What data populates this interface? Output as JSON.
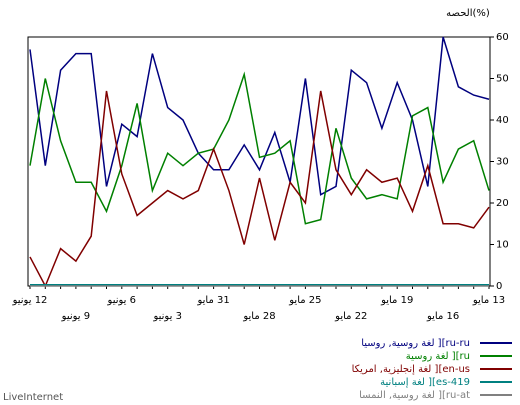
{
  "chart_data": {
    "type": "line",
    "title": "الحصه(%)",
    "categories": [
      "12 يونيو",
      null,
      null,
      "9 يونيو",
      null,
      null,
      "6 يونيو",
      null,
      null,
      "3 يونيو",
      null,
      null,
      "31 مايو",
      null,
      null,
      "28 مايو",
      null,
      null,
      "25 مايو",
      null,
      null,
      "22 مايو",
      null,
      null,
      "19 مايو",
      null,
      null,
      "16 مايو",
      null,
      null,
      "13 مايو"
    ],
    "series": [
      {
        "name": "لغة روسية, روسيا ][ru-ru",
        "color": "#00007f",
        "values": [
          57,
          29,
          52,
          56,
          56,
          24,
          39,
          36,
          56,
          43,
          40,
          32,
          28,
          28,
          34,
          28,
          37,
          25,
          50,
          22,
          24,
          52,
          49,
          38,
          49,
          40,
          24,
          60,
          48,
          46,
          45
        ]
      },
      {
        "name": "لغة روسية ][ru",
        "color": "#008000",
        "values": [
          29,
          50,
          35,
          25,
          25,
          18,
          29,
          44,
          23,
          32,
          29,
          32,
          33,
          40,
          51,
          31,
          32,
          35,
          15,
          16,
          38,
          26,
          21,
          22,
          21,
          41,
          43,
          25,
          33,
          35,
          23
        ]
      },
      {
        "name": "لغة إنجليزية, امريكا ][en-us",
        "color": "#800000",
        "values": [
          7,
          0,
          9,
          6,
          12,
          47,
          27,
          17,
          20,
          23,
          21,
          23,
          33,
          23,
          10,
          26,
          11,
          25,
          20,
          47,
          28,
          22,
          28,
          25,
          26,
          18,
          29,
          15,
          15,
          14,
          19
        ]
      },
      {
        "name": "لغة إسبانية ][es-419",
        "color": "#008080",
        "values": [
          0.3,
          0.3,
          0.3,
          0.3,
          0.3,
          0.3,
          0.3,
          0.3,
          0.3,
          0.3,
          0.3,
          0.3,
          0.3,
          0.3,
          0.3,
          0.3,
          0.3,
          0.3,
          0.3,
          0.3,
          0.3,
          0.3,
          0.3,
          0.3,
          0.3,
          0.3,
          0.3,
          0.3,
          0.3,
          0.3,
          0.3
        ]
      },
      {
        "name": "لغة روسية, النمسا ][ru-at",
        "color": "#808080",
        "values": [
          0,
          0,
          0,
          0,
          0,
          0,
          0,
          0,
          0,
          0,
          0,
          0,
          0,
          0,
          0,
          0,
          0,
          0,
          0,
          0,
          0,
          0,
          0,
          0,
          0,
          0,
          0,
          0,
          0,
          0,
          0
        ]
      }
    ],
    "ylim": [
      0,
      60
    ],
    "yticks": [
      0,
      10,
      20,
      30,
      40,
      50,
      60
    ],
    "footer": "LiveInternet"
  }
}
